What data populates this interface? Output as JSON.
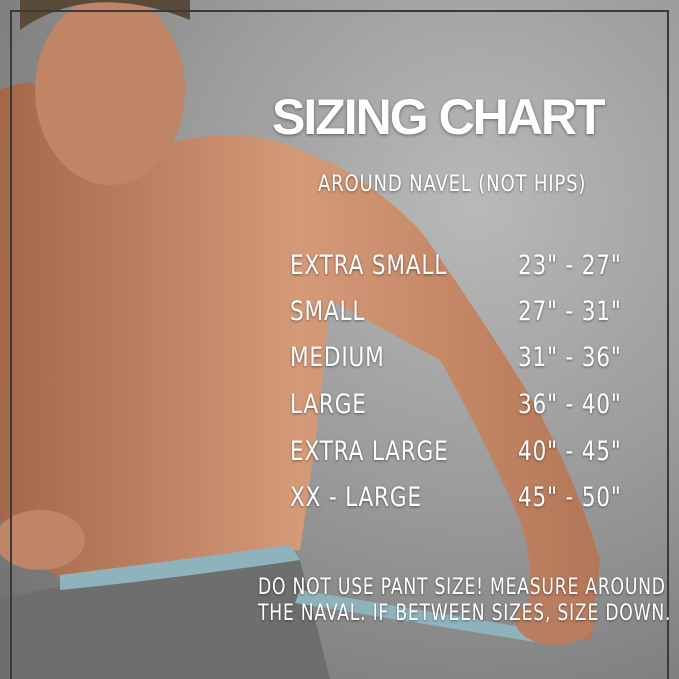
{
  "title": "SIZING CHART",
  "subtitle": "AROUND NAVEL (NOT HIPS)",
  "sizes": [
    {
      "size": "EXTRA SMALL",
      "range": "23\" - 27\""
    },
    {
      "size": "SMALL",
      "range": "27\" - 31\""
    },
    {
      "size": "MEDIUM",
      "range": "31\" - 36\""
    },
    {
      "size": "LARGE",
      "range": "36\" - 40\""
    },
    {
      "size": "EXTRA LARGE",
      "range": "40\" - 45\""
    },
    {
      "size": "XX - LARGE",
      "range": "45\" - 50\""
    }
  ],
  "note": {
    "line1": "DO NOT USE PANT SIZE! MEASURE AROUND",
    "line2": "THE NAVAL. IF BETWEEN SIZES, SIZE DOWN."
  },
  "colors": {
    "background": "#9a9a9a",
    "text": "#ffffff",
    "skin": "#c98d6d",
    "tape": "#8fb3bd",
    "pants": "#6e6e6e"
  }
}
